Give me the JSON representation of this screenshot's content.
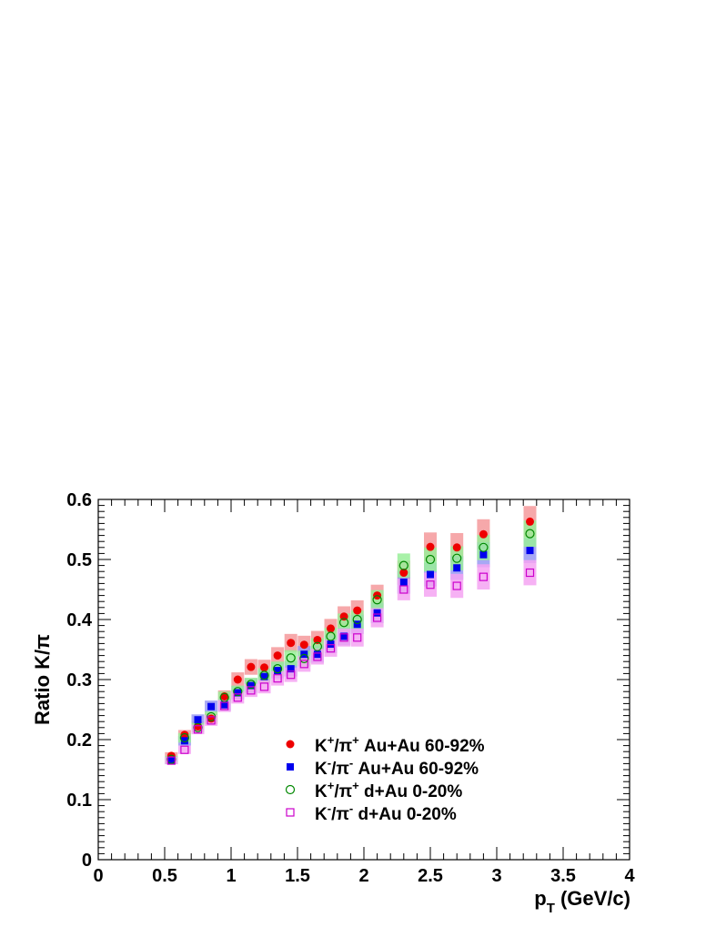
{
  "chart_data": {
    "type": "scatter",
    "xlabel_main": "p",
    "xlabel_sub": "T",
    "xlabel_rest": " (GeV/c)",
    "ylabel": "Ratio K/π",
    "xlim": [
      0,
      4
    ],
    "ylim": [
      0,
      0.6
    ],
    "x_tick_labels": [
      "0",
      "0.5",
      "1",
      "1.5",
      "2",
      "2.5",
      "3",
      "3.5",
      "4"
    ],
    "y_tick_labels": [
      "0",
      "0.1",
      "0.2",
      "0.3",
      "0.4",
      "0.5",
      "0.6"
    ],
    "grid": false,
    "legend_position": "bottom-center",
    "series": [
      {
        "name": "K⁺/π⁺ Au+Au 60-92%",
        "label": {
          "a": "K",
          "a_sup": "+",
          "b": "/π",
          "b_sup": "+",
          "rest": " Au+Au 60-92%"
        },
        "marker": "filled-circle",
        "color": "#ee0000",
        "band_color": "#f4999b",
        "x": [
          0.55,
          0.65,
          0.75,
          0.85,
          0.95,
          1.05,
          1.15,
          1.25,
          1.35,
          1.45,
          1.55,
          1.65,
          1.75,
          1.85,
          1.95,
          2.1,
          2.3,
          2.5,
          2.7,
          2.9,
          3.25
        ],
        "y": [
          0.173,
          0.208,
          0.222,
          0.235,
          0.272,
          0.3,
          0.321,
          0.32,
          0.34,
          0.361,
          0.358,
          0.366,
          0.385,
          0.405,
          0.415,
          0.44,
          0.478,
          0.521,
          0.52,
          0.542,
          0.563
        ],
        "sys": [
          0.006,
          0.008,
          0.008,
          0.009,
          0.01,
          0.012,
          0.013,
          0.013,
          0.014,
          0.015,
          0.015,
          0.015,
          0.016,
          0.017,
          0.017,
          0.018,
          0.02,
          0.024,
          0.024,
          0.025,
          0.026
        ]
      },
      {
        "name": "K⁻/π⁻ Au+Au 60-92%",
        "label": {
          "a": "K",
          "a_sup": "-",
          "b": "/π",
          "b_sup": "-",
          "rest": " Au+Au 60-92%"
        },
        "marker": "filled-square",
        "color": "#0000ee",
        "band_color": "#9999f2",
        "x": [
          0.55,
          0.65,
          0.75,
          0.85,
          0.95,
          1.05,
          1.15,
          1.25,
          1.35,
          1.45,
          1.55,
          1.65,
          1.75,
          1.85,
          1.95,
          2.1,
          2.3,
          2.5,
          2.7,
          2.9,
          3.25
        ],
        "y": [
          0.165,
          0.198,
          0.233,
          0.255,
          0.258,
          0.278,
          0.29,
          0.305,
          0.315,
          0.318,
          0.342,
          0.342,
          0.359,
          0.372,
          0.392,
          0.411,
          0.462,
          0.475,
          0.486,
          0.508,
          0.515
        ],
        "sys": [
          0.006,
          0.008,
          0.009,
          0.01,
          0.01,
          0.011,
          0.012,
          0.012,
          0.013,
          0.013,
          0.014,
          0.014,
          0.015,
          0.015,
          0.016,
          0.017,
          0.019,
          0.02,
          0.02,
          0.021,
          0.021
        ]
      },
      {
        "name": "K⁺/π⁺ d+Au 0-20%",
        "label": {
          "a": "K",
          "a_sup": "+",
          "b": "/π",
          "b_sup": "+",
          "rest": " d+Au 0-20%"
        },
        "marker": "open-circle",
        "color": "#008800",
        "band_color": "#99ee99",
        "x": [
          0.55,
          0.65,
          0.75,
          0.85,
          0.95,
          1.05,
          1.15,
          1.25,
          1.35,
          1.45,
          1.55,
          1.65,
          1.75,
          1.85,
          1.95,
          2.1,
          2.3,
          2.5,
          2.7,
          2.9,
          3.25
        ],
        "y": [
          0.167,
          0.203,
          0.22,
          0.238,
          0.27,
          0.28,
          0.292,
          0.307,
          0.318,
          0.336,
          0.335,
          0.355,
          0.372,
          0.395,
          0.4,
          0.433,
          0.49,
          0.5,
          0.502,
          0.52,
          0.543
        ],
        "sys": [
          0.006,
          0.008,
          0.008,
          0.009,
          0.01,
          0.01,
          0.011,
          0.012,
          0.012,
          0.013,
          0.013,
          0.014,
          0.014,
          0.015,
          0.015,
          0.016,
          0.02,
          0.02,
          0.02,
          0.021,
          0.022
        ]
      },
      {
        "name": "K⁻/π⁻ d+Au 0-20%",
        "label": {
          "a": "K",
          "a_sup": "-",
          "b": "/π",
          "b_sup": "-",
          "rest": " d+Au 0-20%"
        },
        "marker": "open-square",
        "color": "#cc00cc",
        "band_color": "#f5a3f2",
        "x": [
          0.55,
          0.65,
          0.75,
          0.85,
          0.95,
          1.05,
          1.15,
          1.25,
          1.35,
          1.45,
          1.55,
          1.65,
          1.75,
          1.85,
          1.95,
          2.1,
          2.3,
          2.5,
          2.7,
          2.9,
          3.25
        ],
        "y": [
          0.165,
          0.183,
          0.217,
          0.232,
          0.256,
          0.27,
          0.282,
          0.288,
          0.302,
          0.308,
          0.326,
          0.338,
          0.352,
          0.37,
          0.37,
          0.403,
          0.45,
          0.458,
          0.456,
          0.471,
          0.478
        ],
        "sys": [
          0.006,
          0.007,
          0.008,
          0.009,
          0.01,
          0.01,
          0.011,
          0.011,
          0.012,
          0.012,
          0.013,
          0.013,
          0.014,
          0.015,
          0.015,
          0.016,
          0.018,
          0.02,
          0.02,
          0.021,
          0.021
        ]
      }
    ]
  }
}
